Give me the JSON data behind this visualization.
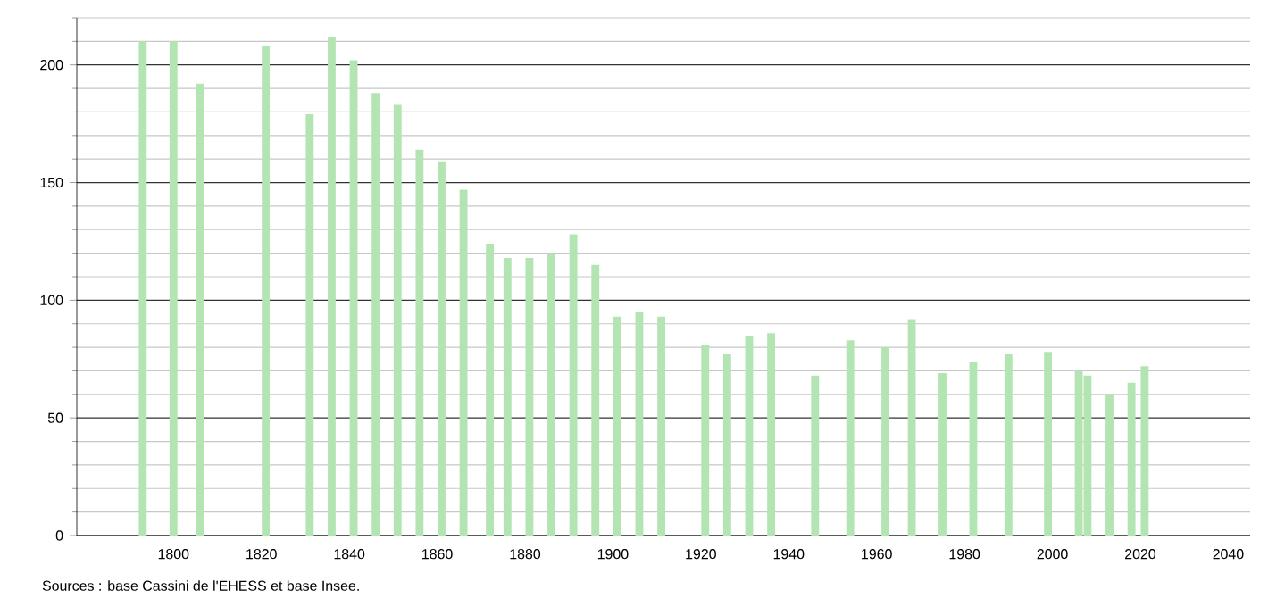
{
  "chart_data": {
    "type": "bar",
    "x": [
      1793,
      1800,
      1806,
      1821,
      1831,
      1836,
      1841,
      1846,
      1851,
      1856,
      1861,
      1866,
      1872,
      1876,
      1881,
      1886,
      1891,
      1896,
      1901,
      1906,
      1911,
      1921,
      1926,
      1931,
      1936,
      1946,
      1954,
      1962,
      1968,
      1975,
      1982,
      1990,
      1999,
      2006,
      2008,
      2013,
      2018,
      2021
    ],
    "values": [
      210,
      210,
      192,
      208,
      179,
      212,
      202,
      188,
      183,
      164,
      159,
      147,
      124,
      118,
      118,
      120,
      128,
      115,
      93,
      95,
      93,
      81,
      77,
      85,
      86,
      68,
      83,
      80,
      92,
      69,
      74,
      77,
      78,
      70,
      68,
      60,
      65,
      72
    ],
    "color": "#b3e5b3",
    "xlim": [
      1778,
      2045
    ],
    "xticks": [
      1800,
      1820,
      1840,
      1860,
      1880,
      1900,
      1920,
      1940,
      1960,
      1980,
      2000,
      2020,
      2040
    ],
    "ylim": [
      0,
      220
    ],
    "yticks": [
      0,
      {
        "value": 10,
        "label": null
      },
      {
        "value": 20,
        "label": null
      },
      {
        "value": 30,
        "label": null
      },
      {
        "value": 40,
        "label": null
      },
      50,
      {
        "value": 60,
        "label": null
      },
      {
        "value": 70,
        "label": null
      },
      {
        "value": 80,
        "label": null
      },
      {
        "value": 90,
        "label": null
      },
      100,
      {
        "value": 110,
        "label": null
      },
      {
        "value": 120,
        "label": null
      },
      {
        "value": 130,
        "label": null
      },
      {
        "value": 140,
        "label": null
      },
      150,
      {
        "value": 160,
        "label": null
      },
      {
        "value": 170,
        "label": null
      },
      {
        "value": 180,
        "label": null
      },
      {
        "value": 190,
        "label": null
      },
      200,
      {
        "value": 210,
        "label": null
      },
      {
        "value": 220,
        "label": null
      }
    ],
    "grid": "y",
    "annotations": [
      "Sources : base Cassini de l'EHESS et base Insee."
    ]
  }
}
